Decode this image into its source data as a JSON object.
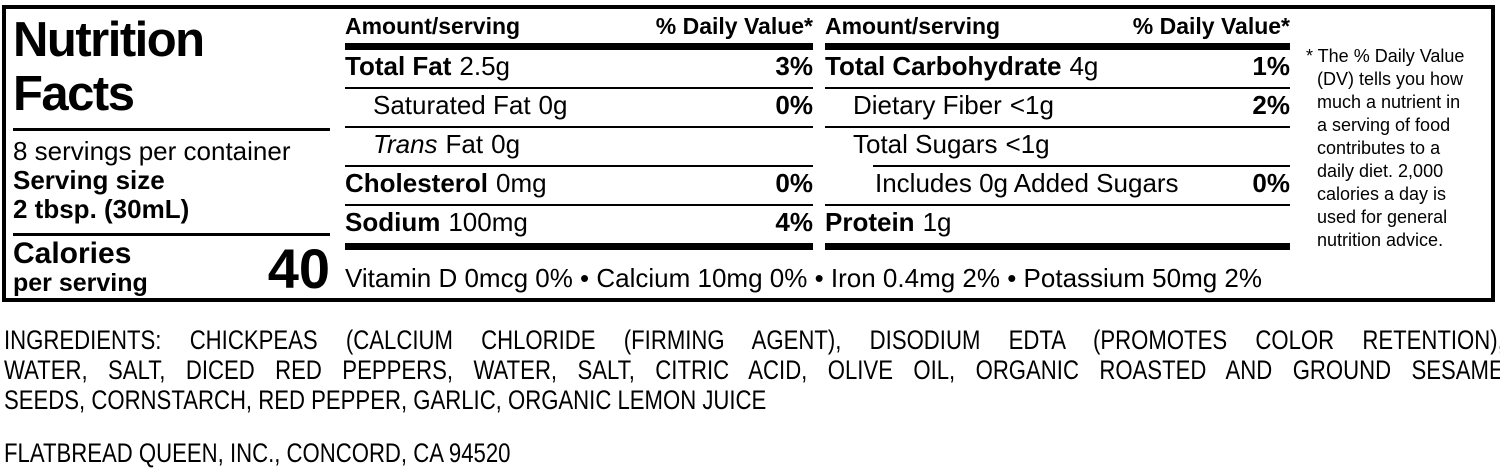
{
  "colors": {
    "text": "#000000",
    "background": "#ffffff"
  },
  "panel": {
    "title_line1": "Nutrition",
    "title_line2": "Facts",
    "servings_per_container": "8 servings per container",
    "serving_size_label": "Serving size",
    "serving_size_value": "2 tbsp. (30mL)",
    "calories_label": "Calories",
    "calories_sublabel": "per serving",
    "calories_value": "40"
  },
  "table": {
    "header_amount": "Amount/serving",
    "header_dv": "% Daily Value*",
    "col1_rows": [
      {
        "name": "Total Fat",
        "amount": "2.5g",
        "dv": "3%"
      },
      {
        "name": "Saturated Fat",
        "amount": "0g",
        "dv": "0%"
      },
      {
        "name_italic": "Trans",
        "name": "Fat",
        "amount": "0g",
        "dv": ""
      },
      {
        "name": "Cholesterol",
        "amount": "0mg",
        "dv": "0%"
      },
      {
        "name": "Sodium",
        "amount": "100mg",
        "dv": "4%"
      }
    ],
    "col2_rows": [
      {
        "name": "Total Carbohydrate",
        "amount": "4g",
        "dv": "1%"
      },
      {
        "name": "Dietary Fiber",
        "amount": "<1g",
        "dv": "2%"
      },
      {
        "name": "Total Sugars",
        "amount": "<1g",
        "dv": ""
      },
      {
        "name": "Includes 0g Added Sugars",
        "amount": "",
        "dv": "0%"
      },
      {
        "name": "Protein",
        "amount": "1g",
        "dv": ""
      }
    ]
  },
  "micronutrients": "Vitamin D 0mcg 0% • Calcium 10mg 0% • Iron 0.4mg 2% • Potassium 50mg 2%",
  "footnote_lines": [
    "* The % Daily Value",
    "(DV) tells you how",
    "much a nutrient in",
    "a serving of food",
    "contributes to a",
    "daily diet. 2,000",
    "calories a day is",
    "used for general",
    "nutrition advice."
  ],
  "ingredients_lines": [
    "INGREDIENTS: CHICKPEAS (CALCIUM CHLORIDE (FIRMING AGENT), DISODIUM EDTA (PROMOTES COLOR RETENTION),",
    "WATER, SALT, DICED RED PEPPERS, WATER, SALT, CITRIC ACID, OLIVE OIL, ORGANIC ROASTED AND GROUND SESAME",
    "SEEDS, CORNSTARCH, RED PEPPER, GARLIC, ORGANIC LEMON JUICE"
  ],
  "manufacturer": "FLATBREAD QUEEN, INC., CONCORD, CA 94520"
}
